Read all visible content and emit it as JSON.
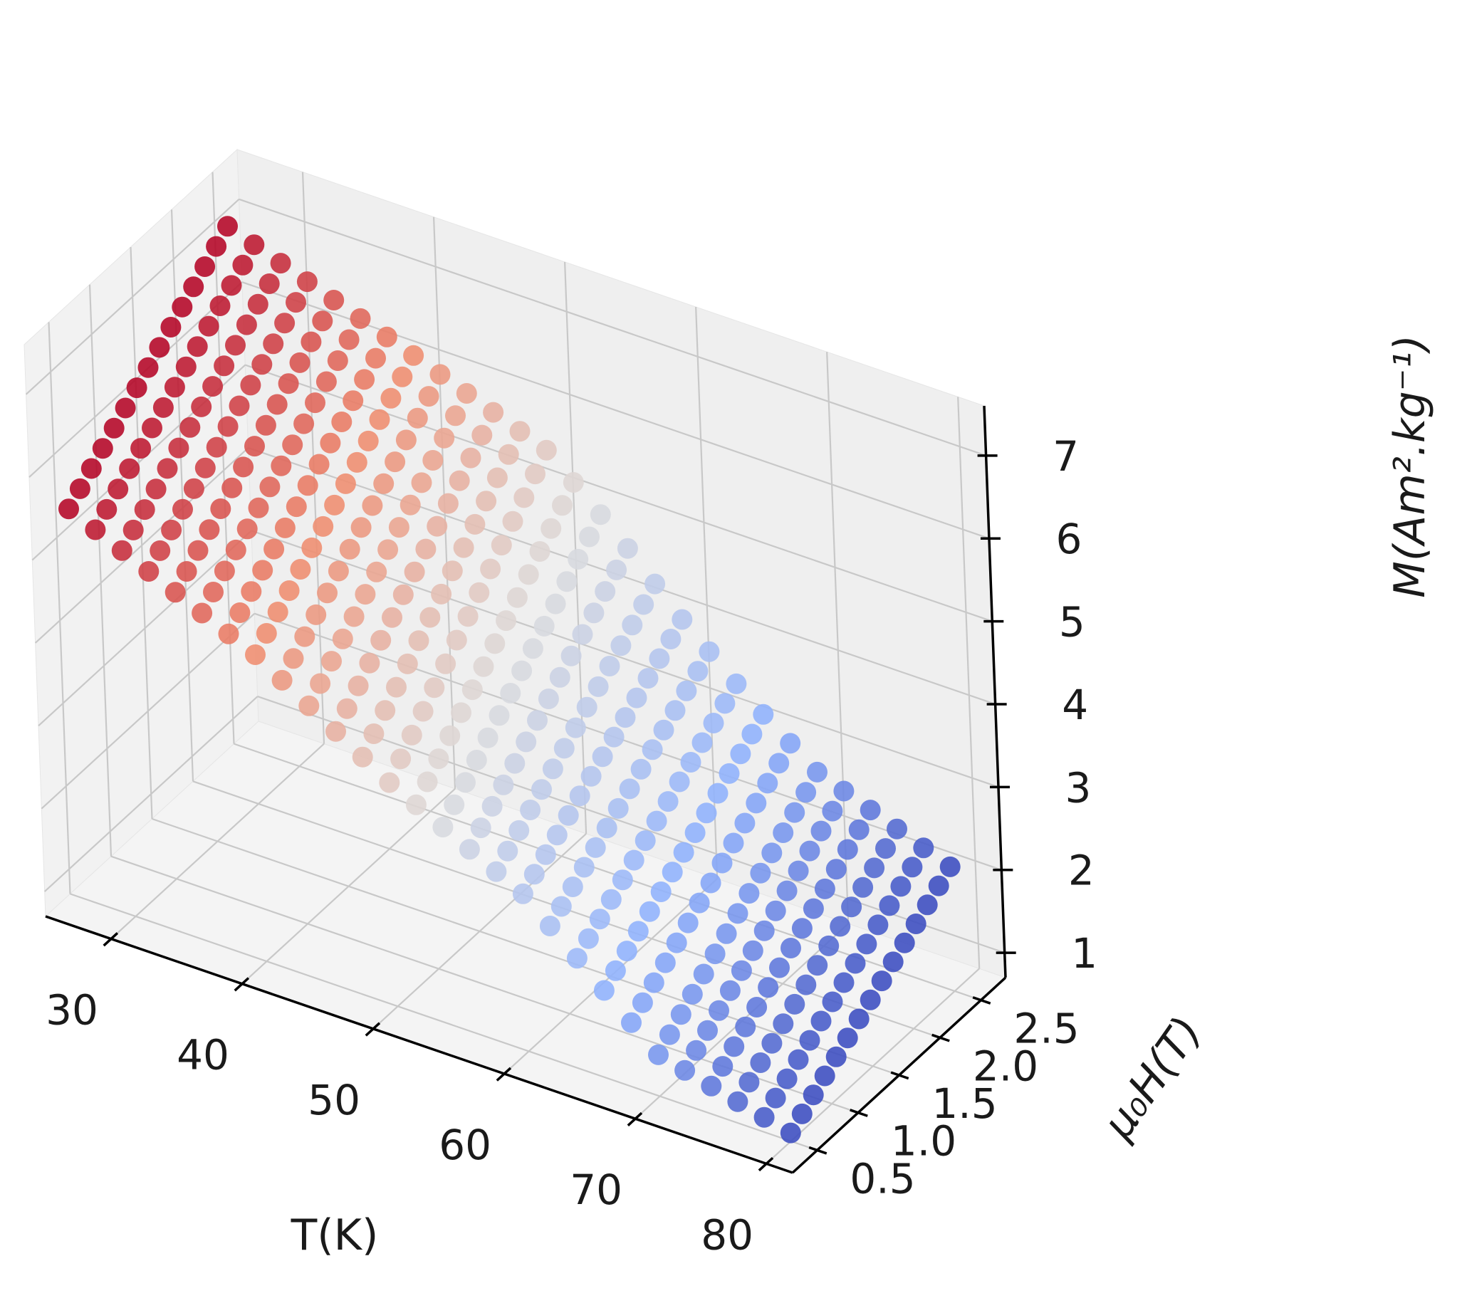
{
  "chart_data": {
    "type": "scatter",
    "projection": "3d",
    "colormap": "coolwarm",
    "colormap_colors": [
      "#b40426",
      "#f08a6c",
      "#dddcdc",
      "#8db0fe",
      "#3b4cc0"
    ],
    "pane_color": "#f2f2f2",
    "grid": true,
    "x_axis": {
      "label": "T(K)",
      "ticks": [
        30,
        40,
        50,
        60,
        70,
        80
      ],
      "tick_labels": [
        "30",
        "40",
        "50",
        "60",
        "70",
        "80"
      ],
      "range": [
        25,
        82
      ]
    },
    "y_axis": {
      "label": "μ₀H(T)",
      "ticks": [
        0.5,
        1.0,
        1.5,
        2.0,
        2.5
      ],
      "tick_labels": [
        "0.5",
        "1.0",
        "1.5",
        "2.0",
        "2.5"
      ],
      "range": [
        0.2,
        2.8
      ]
    },
    "z_axis": {
      "label": "M(Am².kg⁻¹)",
      "ticks": [
        1,
        2,
        3,
        4,
        5,
        6,
        7
      ],
      "tick_labels": [
        "1",
        "2",
        "3",
        "4",
        "5",
        "6",
        "7"
      ],
      "range": [
        0.7,
        7.6
      ]
    },
    "grid_T": {
      "start": 26,
      "stop": 80,
      "count": 28
    },
    "grid_H": {
      "start": 0.5,
      "stop": 2.5,
      "count": 15
    },
    "M_ends": [
      {
        "T": 26,
        "M_at_H_min": 5.4,
        "M_at_H_max": 7.0
      },
      {
        "T": 40,
        "M_at_H_min": 4.4,
        "M_at_H_max": 6.2
      },
      {
        "T": 50,
        "M_at_H_min": 3.4,
        "M_at_H_max": 5.6
      },
      {
        "T": 55,
        "M_at_H_min": 3.0,
        "M_at_H_max": 4.9
      },
      {
        "T": 60,
        "M_at_H_min": 2.6,
        "M_at_H_max": 4.1
      },
      {
        "T": 65,
        "M_at_H_min": 1.9,
        "M_at_H_max": 3.4
      },
      {
        "T": 70,
        "M_at_H_min": 1.2,
        "M_at_H_max": 2.8
      },
      {
        "T": 80,
        "M_at_H_min": 0.8,
        "M_at_H_max": 2.2
      }
    ]
  }
}
